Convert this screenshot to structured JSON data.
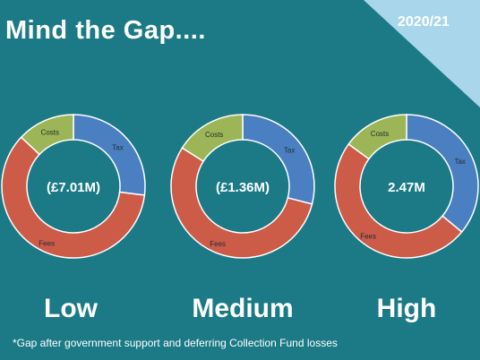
{
  "title": "Mind the Gap....",
  "year": "2020/21",
  "footnote": "*Gap after government support and deferring Collection Fund losses",
  "colors": {
    "background": "#1b7a86",
    "corner": "#a9d6ea",
    "tax": "#4a7fc1",
    "fees": "#cc5b48",
    "costs": "#9cb557"
  },
  "chart_data": [
    {
      "type": "pie",
      "scenario": "Low",
      "center_label": "(£7.01M)",
      "slices": [
        {
          "label": "Tax",
          "share": 0.27
        },
        {
          "label": "Fees",
          "share": 0.6
        },
        {
          "label": "Costs",
          "share": 0.13
        }
      ]
    },
    {
      "type": "pie",
      "scenario": "Medium",
      "center_label": "(£1.36M)",
      "slices": [
        {
          "label": "Tax",
          "share": 0.29
        },
        {
          "label": "Fees",
          "share": 0.55
        },
        {
          "label": "Costs",
          "share": 0.16
        }
      ]
    },
    {
      "type": "pie",
      "scenario": "High",
      "center_label": "2.47M",
      "slices": [
        {
          "label": "Tax",
          "share": 0.36
        },
        {
          "label": "Fees",
          "share": 0.49
        },
        {
          "label": "Costs",
          "share": 0.15
        }
      ]
    }
  ]
}
